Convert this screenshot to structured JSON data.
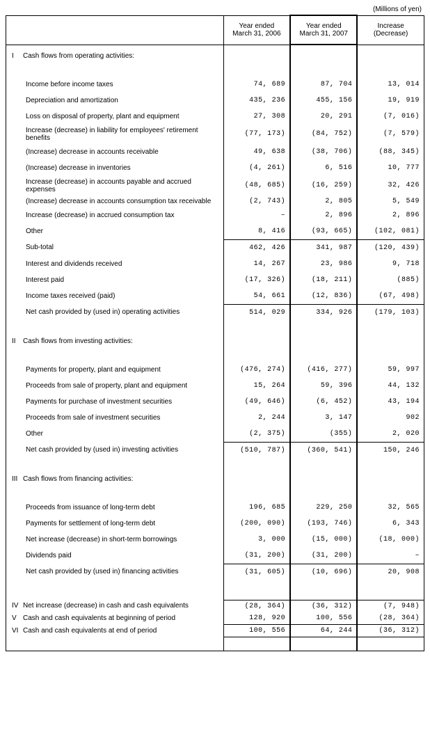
{
  "unit_label": "(Millions of yen)",
  "headers": {
    "col1": "Year ended\nMarch 31, 2006",
    "col2": "Year ended\nMarch 31, 2007",
    "col3": "Increase (Decrease)"
  },
  "sections": [
    {
      "roman": "I",
      "title": "Cash flows from operating activities:",
      "rows": [
        {
          "label": "Income before income taxes",
          "v": [
            "74, 689",
            "87, 704",
            "13, 014"
          ]
        },
        {
          "label": "Depreciation and amortization",
          "v": [
            "435, 236",
            "455, 156",
            "19, 919"
          ]
        },
        {
          "label": "Loss on disposal of property, plant and equipment",
          "v": [
            "27, 308",
            "20, 291",
            "(7, 016)"
          ]
        },
        {
          "label": "Increase (decrease) in liability for employees' retirement benefits",
          "v": [
            "(77, 173)",
            "(84, 752)",
            "(7, 579)"
          ],
          "tight": true
        },
        {
          "label": "(Increase) decrease in accounts receivable",
          "v": [
            "49, 638",
            "(38, 706)",
            "(88, 345)"
          ]
        },
        {
          "label": "(Increase) decrease in inventories",
          "v": [
            "(4, 261)",
            "6, 516",
            "10, 777"
          ]
        },
        {
          "label": "Increase (decrease) in accounts payable and accrued expenses",
          "v": [
            "(48, 685)",
            "(16, 259)",
            "32, 426"
          ],
          "tight": true
        },
        {
          "label": "(Increase) decrease in accounts consumption tax receivable",
          "v": [
            "(2, 743)",
            "2, 805",
            "5, 549"
          ],
          "tight": true
        },
        {
          "label": "Increase (decrease) in accrued consumption tax",
          "v": [
            "–",
            "2, 896",
            "2, 896"
          ]
        },
        {
          "label": "Other",
          "v": [
            "8, 416",
            "(93, 665)",
            "(102, 081)"
          ]
        },
        {
          "label": "Sub-total",
          "v": [
            "462, 426",
            "341, 987",
            "(120, 439)"
          ],
          "top_border_vals": true
        },
        {
          "label": "Interest and dividends received",
          "v": [
            "14, 267",
            "23, 986",
            "9, 718"
          ]
        },
        {
          "label": "Interest paid",
          "v": [
            "(17, 326)",
            "(18, 211)",
            "(885)"
          ]
        },
        {
          "label": "Income taxes received (paid)",
          "v": [
            "54, 661",
            "(12, 836)",
            "(67, 498)"
          ]
        },
        {
          "label": "Net cash provided by (used in) operating activities",
          "v": [
            "514, 029",
            "334, 926",
            "(179, 103)"
          ],
          "top_border_vals": true,
          "indent": 1
        }
      ]
    },
    {
      "roman": "II",
      "title": "Cash flows from investing activities:",
      "rows": [
        {
          "label": "Payments for property, plant and equipment",
          "v": [
            "(476, 274)",
            "(416, 277)",
            "59, 997"
          ]
        },
        {
          "label": "Proceeds from sale of property, plant and equipment",
          "v": [
            "15, 264",
            "59, 396",
            "44, 132"
          ]
        },
        {
          "label": "Payments for purchase of investment securities",
          "v": [
            "(49, 646)",
            "(6, 452)",
            "43, 194"
          ]
        },
        {
          "label": "Proceeds from sale of investment securities",
          "v": [
            "2, 244",
            "3, 147",
            "902"
          ]
        },
        {
          "label": "Other",
          "v": [
            "(2, 375)",
            "(355)",
            "2, 020"
          ]
        },
        {
          "label": "Net cash provided by (used in) investing activities",
          "v": [
            "(510, 787)",
            "(360, 541)",
            "150, 246"
          ],
          "top_border_vals": true,
          "indent": 1
        }
      ]
    },
    {
      "roman": "III",
      "title": "Cash flows from financing activities:",
      "rows": [
        {
          "label": "Proceeds from issuance of long-term debt",
          "v": [
            "196, 685",
            "229, 250",
            "32, 565"
          ]
        },
        {
          "label": "Payments for settlement of long-term debt",
          "v": [
            "(200, 090)",
            "(193, 746)",
            "6, 343"
          ]
        },
        {
          "label": "Net increase (decrease) in short-term borrowings",
          "v": [
            "3, 000",
            "(15, 000)",
            "(18, 000)"
          ]
        },
        {
          "label": "Dividends paid",
          "v": [
            "(31, 200)",
            "(31, 200)",
            "–"
          ]
        },
        {
          "label": "Net cash provided by (used in) financing activities",
          "v": [
            "(31, 605)",
            "(10, 696)",
            "20, 908"
          ],
          "top_border_vals": true,
          "indent": 1
        }
      ]
    }
  ],
  "summary_rows": [
    {
      "roman": "IV",
      "label": "Net increase (decrease) in cash and cash equivalents",
      "v": [
        "(28, 364)",
        "(36, 312)",
        "(7, 948)"
      ],
      "top_border_vals": true
    },
    {
      "roman": "V",
      "label": "Cash and cash equivalents at beginning of period",
      "v": [
        "128, 920",
        "100, 556",
        "(28, 364)"
      ]
    },
    {
      "roman": "VI",
      "label": "Cash and cash equivalents at end of period",
      "v": [
        "100, 556",
        "64, 244",
        "(36, 312)"
      ],
      "top_border_vals": true,
      "bottom_border_vals": true
    }
  ],
  "style": {
    "font_size_pt": 10,
    "mono_font": "Courier New",
    "border_color": "#000000",
    "background_color": "#ffffff",
    "text_color": "#000000"
  }
}
